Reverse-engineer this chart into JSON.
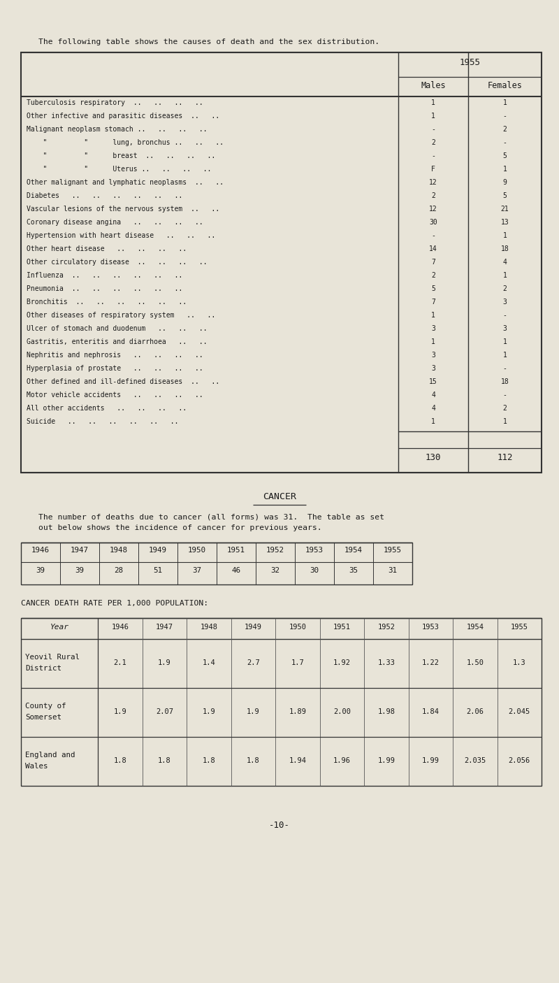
{
  "bg_color": "#e8e4d8",
  "text_color": "#1a1a1a",
  "title_text": "The following table shows the causes of death and the sex distribution.",
  "table1_header_year": "1955",
  "table1_rows": [
    [
      "Tuberculosis respiratory  ..   ..   ..   ..",
      "1",
      "1"
    ],
    [
      "Other infective and parasitic diseases  ..   ..",
      "1",
      "-"
    ],
    [
      "Malignant neoplasm stomach ..   ..   ..   ..",
      "-",
      "2"
    ],
    [
      "    \"         \"      lung, bronchus ..   ..   ..",
      "2",
      "-"
    ],
    [
      "    \"         \"      breast  ..   ..   ..   ..",
      "-",
      "5"
    ],
    [
      "    \"         \"      Uterus ..   ..   ..   ..",
      "F",
      "1"
    ],
    [
      "Other malignant and lymphatic neoplasms  ..   ..",
      "12",
      "9"
    ],
    [
      "Diabetes   ..   ..   ..   ..   ..   ..",
      "2",
      "5"
    ],
    [
      "Vascular lesions of the nervous system  ..   ..",
      "12",
      "21"
    ],
    [
      "Coronary disease angina   ..   ..   ..   ..",
      "30",
      "13"
    ],
    [
      "Hypertension with heart disease   ..   ..   ..",
      "-",
      "1"
    ],
    [
      "Other heart disease   ..   ..   ..   ..",
      "14",
      "18"
    ],
    [
      "Other circulatory disease  ..   ..   ..   ..",
      "7",
      "4"
    ],
    [
      "Influenza  ..   ..   ..   ..   ..   ..",
      "2",
      "1"
    ],
    [
      "Pneumonia  ..   ..   ..   ..   ..   ..",
      "5",
      "2"
    ],
    [
      "Bronchitis  ..   ..   ..   ..   ..   ..",
      "7",
      "3"
    ],
    [
      "Other diseases of respiratory system   ..   ..",
      "1",
      "-"
    ],
    [
      "Ulcer of stomach and duodenum   ..   ..   ..",
      "3",
      "3"
    ],
    [
      "Gastritis, enteritis and diarrhoea   ..   ..",
      "1",
      "1"
    ],
    [
      "Nephritis and nephrosis   ..   ..   ..   ..",
      "3",
      "1"
    ],
    [
      "Hyperplasia of prostate   ..   ..   ..   ..",
      "3",
      "-"
    ],
    [
      "Other defined and ill-defined diseases  ..   ..",
      "15",
      "18"
    ],
    [
      "Motor vehicle accidents   ..   ..   ..   ..",
      "4",
      "-"
    ],
    [
      "All other accidents   ..   ..   ..   ..",
      "4",
      "2"
    ],
    [
      "Suicide   ..   ..   ..   ..   ..   ..",
      "1",
      "1"
    ]
  ],
  "table1_totals": [
    "130",
    "112"
  ],
  "cancer_heading": "CANCER",
  "cancer_text1": "The number of deaths due to cancer (all forms) was 31.  The table as set",
  "cancer_text2": "out below shows the incidence of cancer for previous years.",
  "table2_years": [
    "1946",
    "1947",
    "1948",
    "1949",
    "1950",
    "1951",
    "1952",
    "1953",
    "1954",
    "1955"
  ],
  "table2_values": [
    "39",
    "39",
    "28",
    "51",
    "37",
    "46",
    "32",
    "30",
    "35",
    "31"
  ],
  "cancer_rate_heading": "CANCER DEATH RATE PER 1,000 POPULATION:",
  "table3_col_headers": [
    "Year",
    "1946",
    "1947",
    "1948",
    "1949",
    "1950",
    "1951",
    "1952",
    "1953",
    "1954",
    "1955"
  ],
  "table3_row_labels": [
    "Yeovil Rural\nDistrict",
    "County of\nSomerset",
    "England and\nWales"
  ],
  "table3_data": [
    [
      "2.1",
      "1.9",
      "1.4",
      "2.7",
      "1.7",
      "1.92",
      "1.33",
      "1.22",
      "1.50",
      "1.3"
    ],
    [
      "1.9",
      "2.07",
      "1.9",
      "1.9",
      "1.89",
      "2.00",
      "1.98",
      "1.84",
      "2.06",
      "2.045"
    ],
    [
      "1.8",
      "1.8",
      "1.8",
      "1.8",
      "1.94",
      "1.96",
      "1.99",
      "1.99",
      "2.035",
      "2.056"
    ]
  ],
  "page_number": "-10-"
}
